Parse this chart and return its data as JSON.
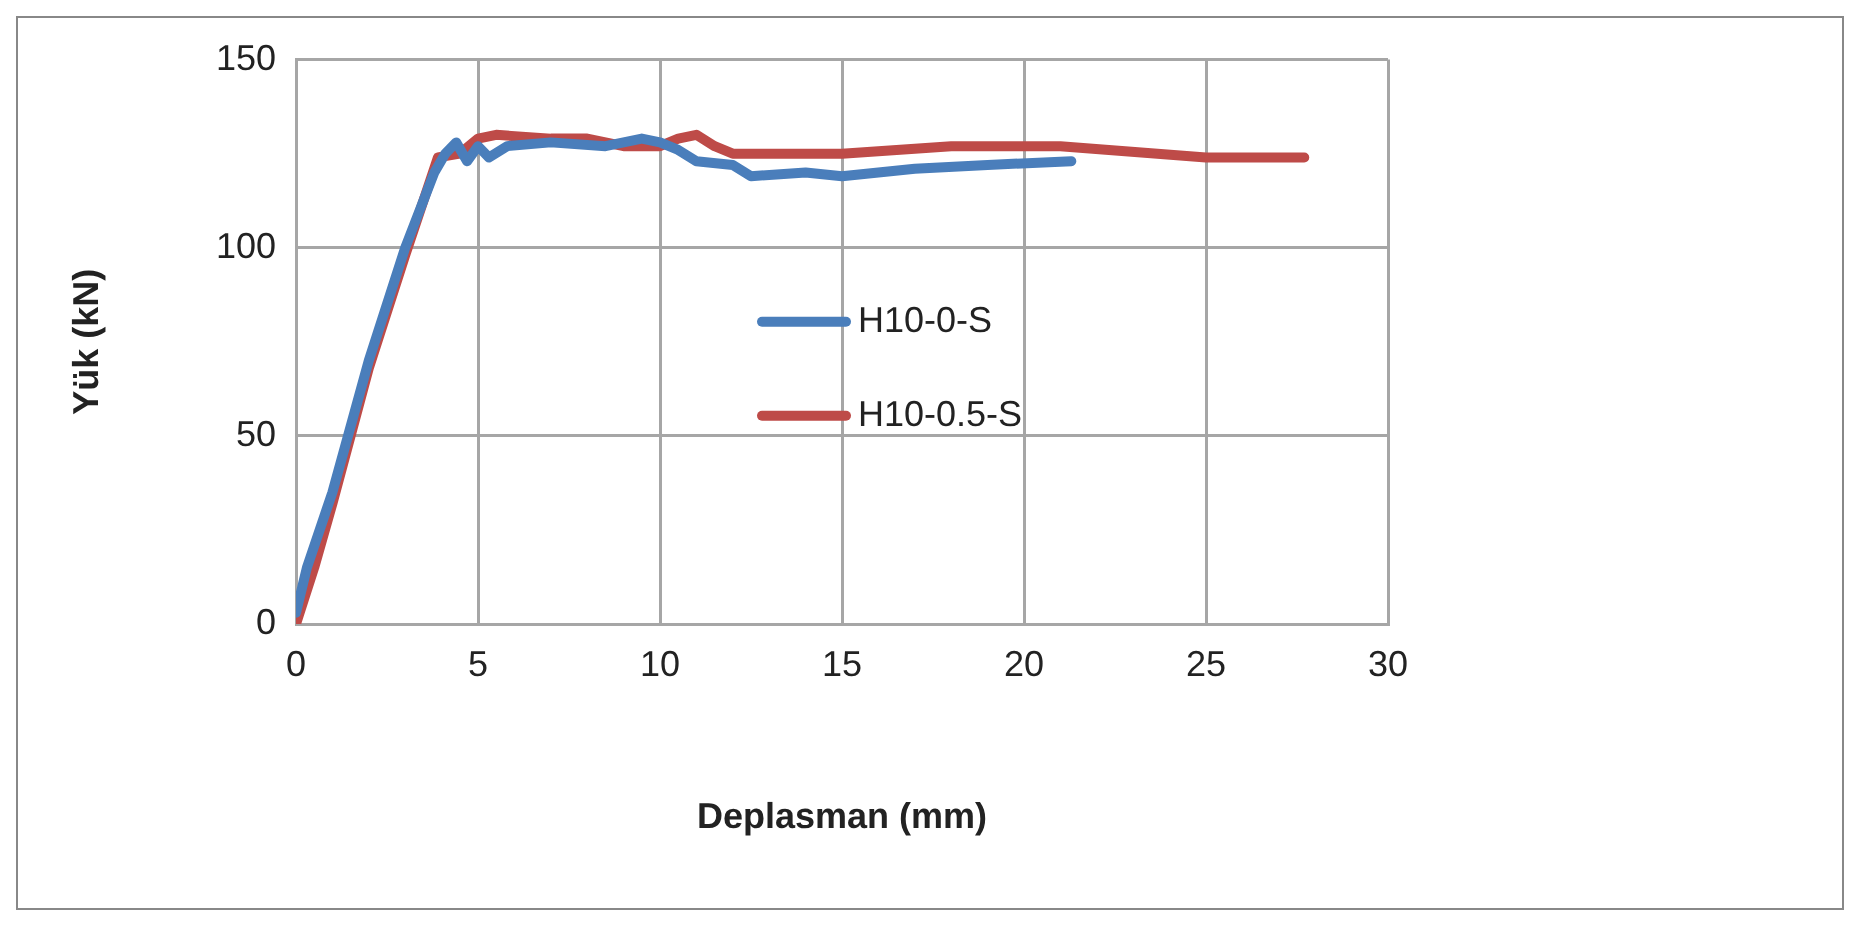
{
  "chart_data": {
    "type": "line",
    "xlabel": "Deplasman (mm)",
    "ylabel": "Yük (kN)",
    "xlim": [
      0,
      30
    ],
    "xticks": [
      0,
      5,
      10,
      15,
      20,
      25,
      30
    ],
    "ylim": [
      0,
      150
    ],
    "yticks": [
      0,
      50,
      100,
      150
    ],
    "grid": true,
    "legend": "center",
    "marker": "none",
    "line_style": "solid",
    "series": [
      {
        "name": "H10-0-S",
        "color": "#4a7ebb",
        "x": [
          0,
          0.3,
          1,
          2,
          3,
          3.8,
          4.1,
          4.4,
          4.7,
          5,
          5.3,
          5.8,
          7,
          8.5,
          9.5,
          10,
          10.5,
          11,
          12,
          12.5,
          14,
          15,
          17,
          19,
          21.3
        ],
        "values": [
          3,
          15,
          35,
          70,
          100,
          120,
          125,
          128,
          123,
          127,
          124,
          127,
          128,
          127,
          129,
          128,
          126,
          123,
          122,
          119,
          120,
          119,
          121,
          122,
          123
        ]
      },
      {
        "name": "H10-0.5-S",
        "color": "#be4b48",
        "x": [
          0,
          0.5,
          1,
          1.5,
          2,
          3,
          3.9,
          4.5,
          5,
          5.5,
          7,
          8,
          9,
          10,
          10.5,
          11,
          11.5,
          12,
          15,
          18,
          21,
          25,
          27.7
        ],
        "values": [
          0,
          15,
          32,
          50,
          68,
          98,
          124,
          125,
          129,
          130,
          129,
          129,
          127,
          127,
          129,
          130,
          127,
          125,
          125,
          127,
          127,
          124,
          124
        ]
      }
    ]
  }
}
